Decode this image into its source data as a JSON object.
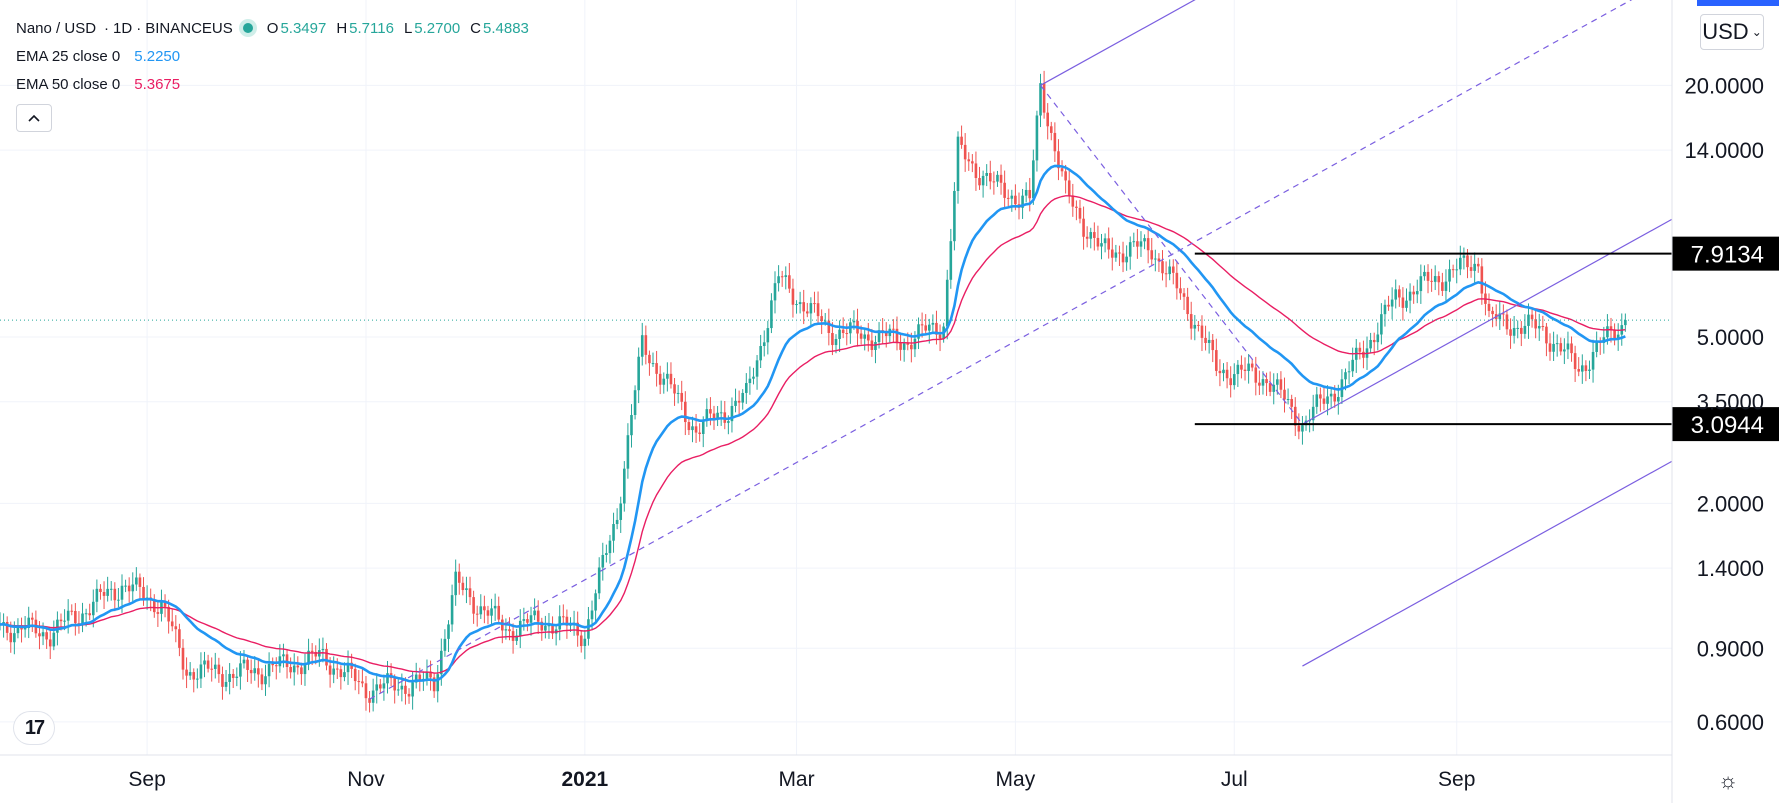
{
  "legend": {
    "symbol": "Nano / USD",
    "interval": "1D",
    "exchange": "BINANCEUS",
    "open_label": "O",
    "open": "5.3497",
    "high_label": "H",
    "high": "5.7116",
    "low_label": "L",
    "low": "5.2700",
    "close_label": "C",
    "close": "5.4883",
    "ema25_label": "EMA 25 close 0",
    "ema25_value": "5.2250",
    "ema50_label": "EMA 50 close 0",
    "ema50_value": "5.3675"
  },
  "icons": {
    "collapse": "chevron-up-icon",
    "logo": "tradingview-logo-icon",
    "settings": "gear-icon",
    "currency_menu": "chevron-down-icon"
  },
  "currency_button": {
    "label": "USD"
  },
  "logo_text": "17",
  "colors": {
    "ema25": "#2196f3",
    "ema50": "#e91e63",
    "up": "#26a69a",
    "down": "#ef5350",
    "pitchfork": "#7b5fe0",
    "level": "#000000"
  },
  "chart_data": {
    "type": "candlestick",
    "scale": "log",
    "ylim": [
      0.5,
      32
    ],
    "y_ticks": [
      0.6,
      0.9,
      1.4,
      2.0,
      3.5,
      5.0,
      14.0,
      20.0
    ],
    "y_tick_labels": [
      "0.6000",
      "0.9000",
      "1.4000",
      "2.0000",
      "3.5000",
      "5.0000",
      "14.0000",
      "20.0000"
    ],
    "x_ticks": [
      "Sep",
      "Nov",
      "2021",
      "Mar",
      "May",
      "Jul",
      "Sep"
    ],
    "x_tick_bold": [
      false,
      false,
      true,
      false,
      false,
      false,
      false
    ],
    "x_range": [
      "2020-07-22",
      "2021-10-31"
    ],
    "x_tick_dates": [
      "2020-09-01",
      "2020-11-01",
      "2021-01-01",
      "2021-03-01",
      "2021-05-01",
      "2021-07-01",
      "2021-09-01"
    ],
    "close_anchors": [
      [
        "2020-07-22",
        1.02
      ],
      [
        "2020-08-05",
        0.98
      ],
      [
        "2020-08-25",
        1.28
      ],
      [
        "2020-09-05",
        1.15
      ],
      [
        "2020-09-12",
        0.8
      ],
      [
        "2020-09-25",
        0.78
      ],
      [
        "2020-10-10",
        0.82
      ],
      [
        "2020-10-20",
        0.86
      ],
      [
        "2020-11-01",
        0.72
      ],
      [
        "2020-11-20",
        0.75
      ],
      [
        "2020-11-26",
        1.28
      ],
      [
        "2020-12-10",
        1.0
      ],
      [
        "2020-12-20",
        1.05
      ],
      [
        "2021-01-01",
        0.98
      ],
      [
        "2021-01-10",
        1.9
      ],
      [
        "2021-01-17",
        4.8
      ],
      [
        "2021-02-01",
        3.0
      ],
      [
        "2021-02-15",
        3.6
      ],
      [
        "2021-02-24",
        6.9
      ],
      [
        "2021-03-10",
        5.2
      ],
      [
        "2021-04-01",
        4.9
      ],
      [
        "2021-04-11",
        5.4
      ],
      [
        "2021-04-15",
        14.0
      ],
      [
        "2021-04-25",
        11.5
      ],
      [
        "2021-05-05",
        10.5
      ],
      [
        "2021-05-08",
        20.0
      ],
      [
        "2021-05-15",
        11.0
      ],
      [
        "2021-05-25",
        8.0
      ],
      [
        "2021-06-08",
        8.2
      ],
      [
        "2021-06-20",
        5.5
      ],
      [
        "2021-06-26",
        4.2
      ],
      [
        "2021-07-10",
        4.0
      ],
      [
        "2021-07-20",
        3.1
      ],
      [
        "2021-08-01",
        4.0
      ],
      [
        "2021-08-15",
        6.2
      ],
      [
        "2021-08-28",
        7.0
      ],
      [
        "2021-09-07",
        7.6
      ],
      [
        "2021-09-10",
        5.5
      ],
      [
        "2021-09-25",
        5.2
      ],
      [
        "2021-10-05",
        4.2
      ],
      [
        "2021-10-15",
        5.2
      ],
      [
        "2021-10-18",
        5.49
      ]
    ],
    "ema25_last": 5.225,
    "ema50_last": 5.3675,
    "last_price": 5.4883,
    "horizontal_levels": [
      {
        "value": 7.9134,
        "label": "7.9134",
        "from": "2021-06-20",
        "to": "2021-10-31"
      },
      {
        "value": 3.0944,
        "label": "3.0944",
        "from": "2021-06-20",
        "to": "2021-10-31"
      }
    ],
    "pitchfork": {
      "point_a": [
        "2020-11-02",
        0.68
      ],
      "point_b": [
        "2021-05-08",
        20.0
      ],
      "point_c": [
        "2021-07-20",
        3.0944
      ],
      "extend_to": "2021-10-31"
    }
  }
}
